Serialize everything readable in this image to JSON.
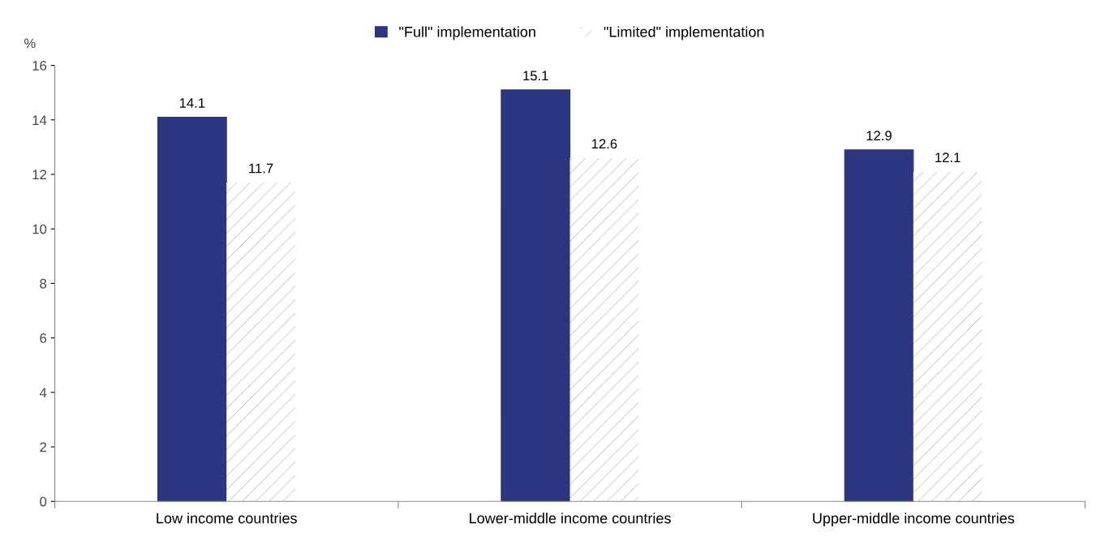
{
  "chart_data": {
    "type": "bar",
    "ylabel": "%",
    "categories": [
      "Low income countries",
      "Lower-middle income countries",
      "Upper-middle income countries"
    ],
    "series": [
      {
        "name": "\"Full\" implementation",
        "color": "#2b3580",
        "values": [
          14.1,
          15.1,
          12.9
        ]
      },
      {
        "name": "\"Limited\" implementation",
        "color": "#ffffff",
        "values": [
          11.7,
          12.6,
          12.1
        ]
      }
    ],
    "ylim": [
      0,
      16
    ],
    "yticks": [
      0,
      2,
      4,
      6,
      8,
      10,
      12,
      14,
      16
    ],
    "data_labels": true,
    "grid": false,
    "legend": "top"
  }
}
